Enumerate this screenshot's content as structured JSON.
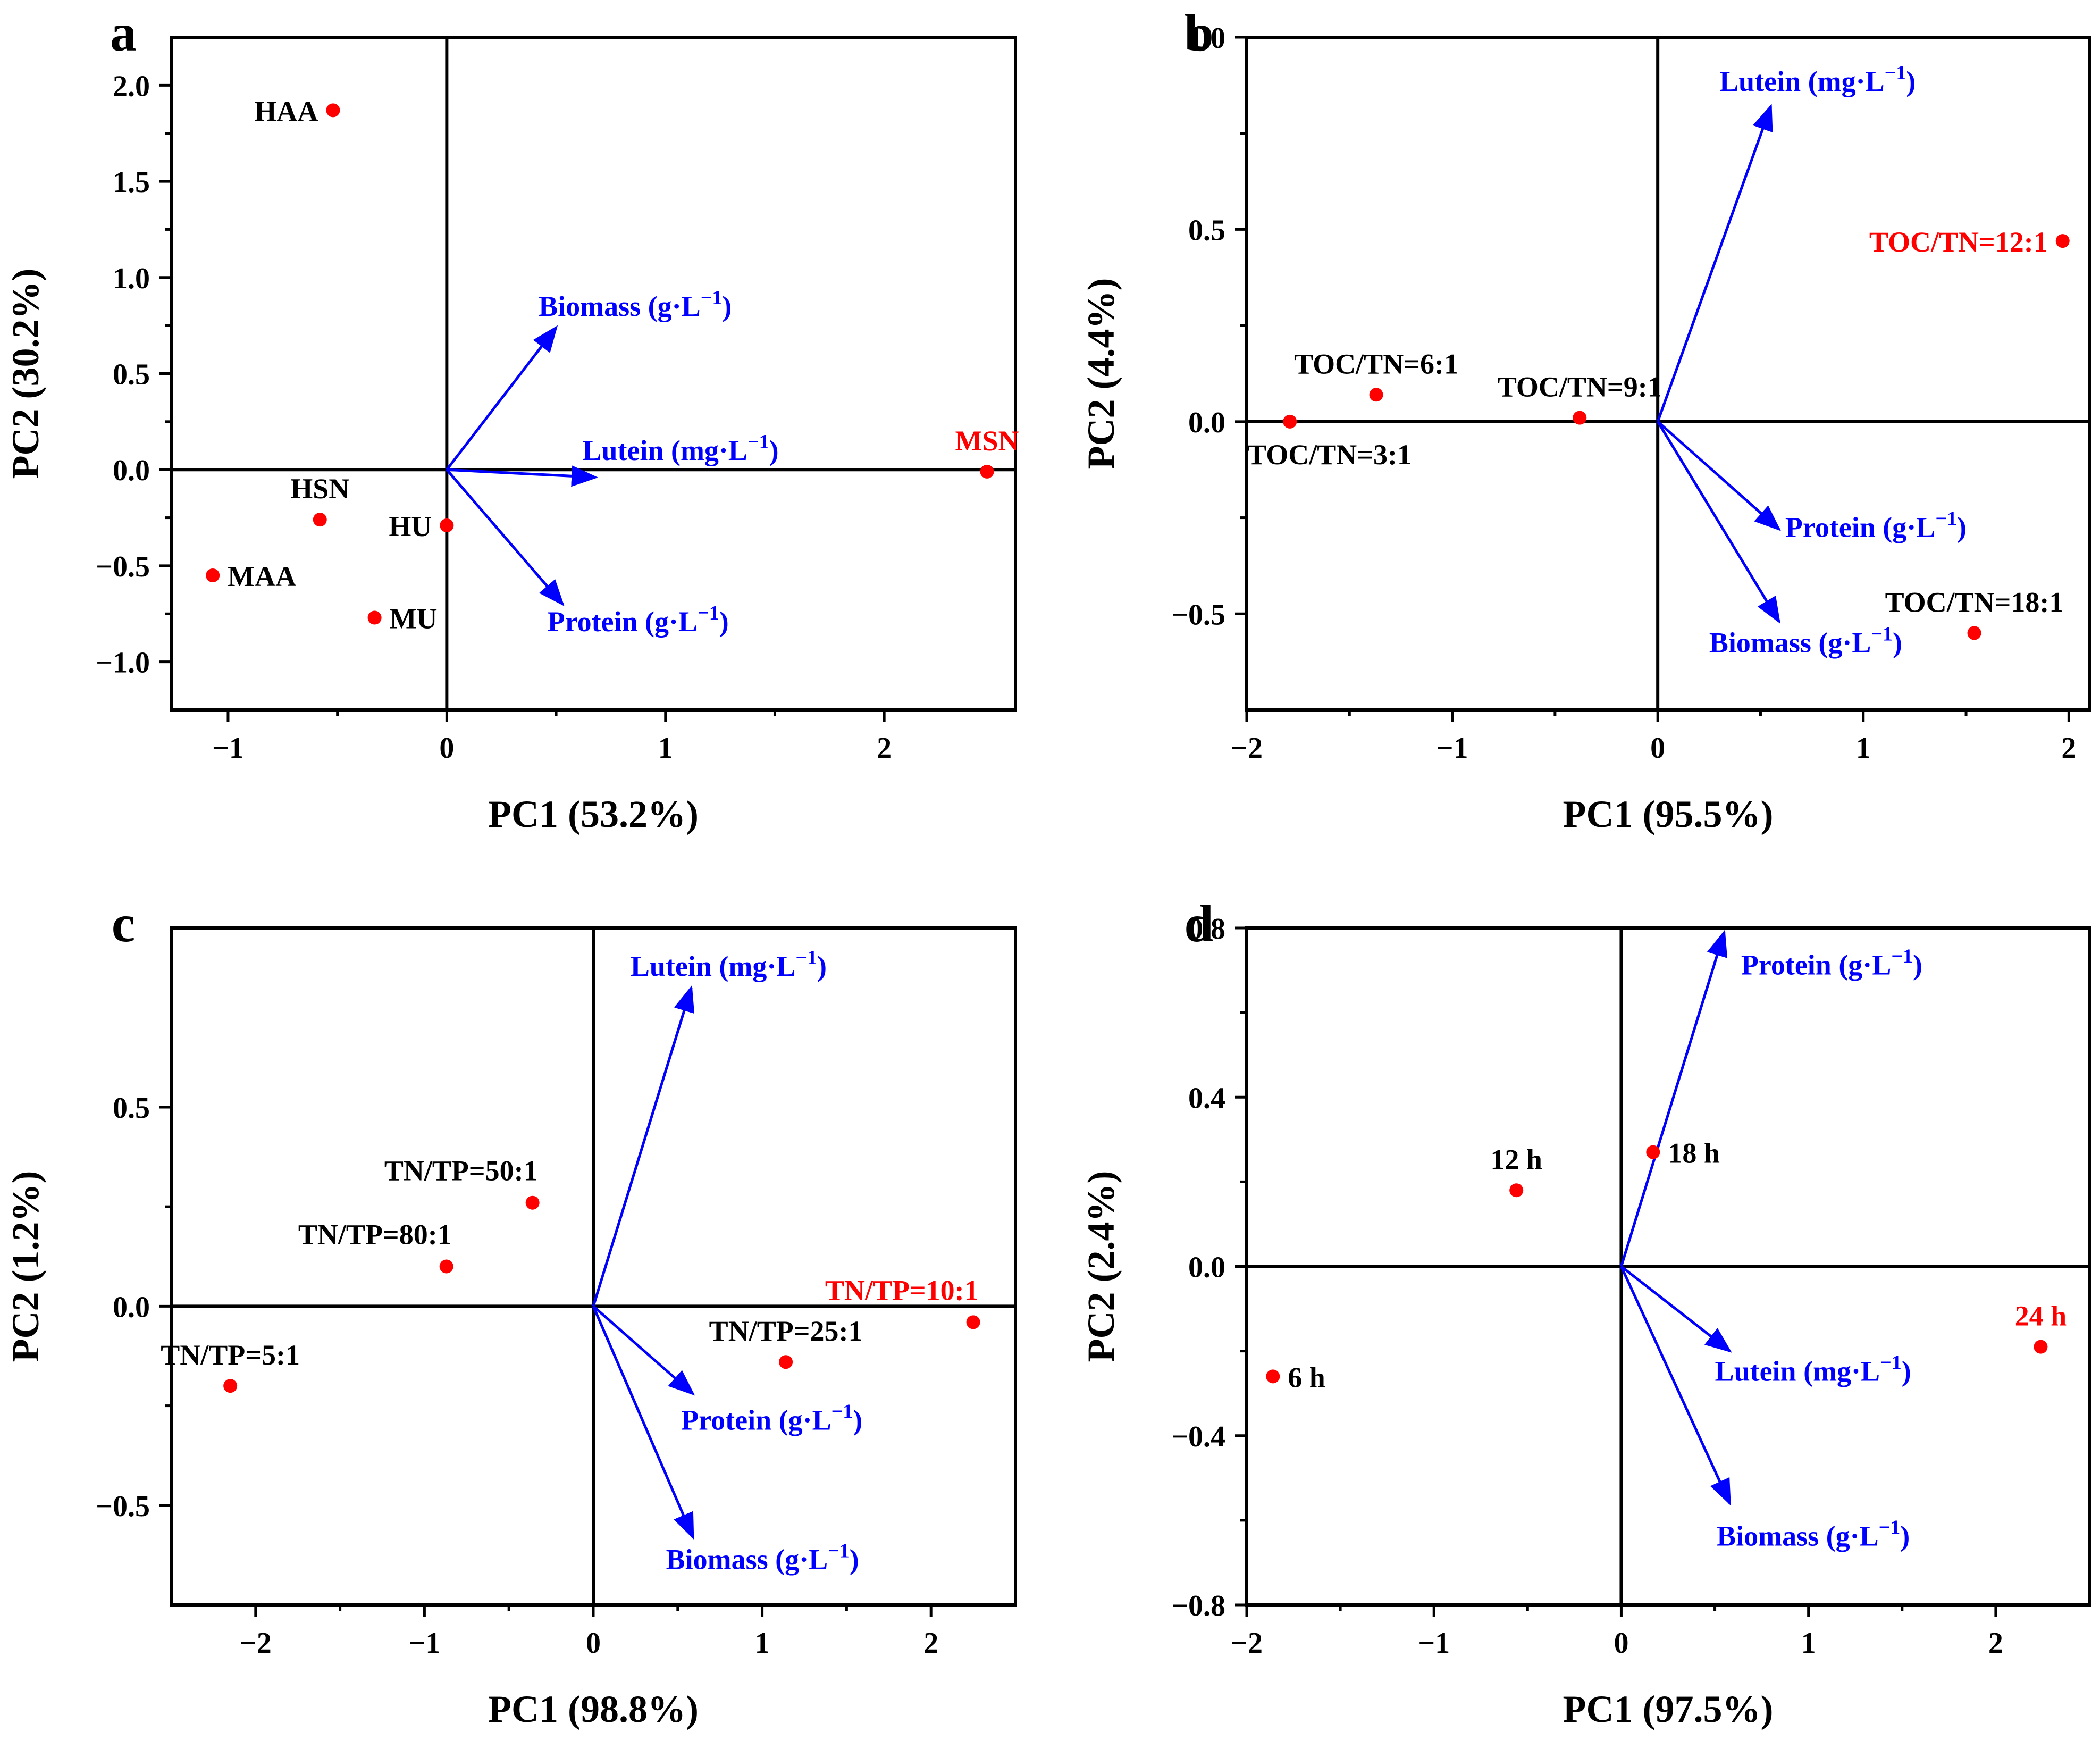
{
  "colors": {
    "point": "#ff0000",
    "vector": "#0000ff",
    "axis": "#000000",
    "highlight": "#ff0000",
    "label": "#000000"
  },
  "chart_data": [
    {
      "type": "scatter",
      "panel": "a",
      "xlabel": "PC1 (53.2%)",
      "ylabel": "PC2 (30.2%)",
      "xlim": [
        -1.26,
        2.6
      ],
      "ylim": [
        -1.25,
        2.25
      ],
      "xticks": [
        {
          "v": -1,
          "label": "−1"
        },
        {
          "v": 0,
          "label": "0"
        },
        {
          "v": 1,
          "label": "1"
        },
        {
          "v": 2,
          "label": "2"
        }
      ],
      "yticks": [
        {
          "v": 2.0,
          "label": "2.0"
        },
        {
          "v": 1.5,
          "label": "1.5"
        },
        {
          "v": 1.0,
          "label": "1.0"
        },
        {
          "v": 0.5,
          "label": "0.5"
        },
        {
          "v": 0.0,
          "label": "0.0"
        },
        {
          "v": -0.5,
          "label": "−0.5"
        },
        {
          "v": -1.0,
          "label": "−1.0"
        }
      ],
      "points": [
        {
          "label": "HAA",
          "x": -0.52,
          "y": 1.87,
          "pos": "left",
          "highlight": false
        },
        {
          "label": "MSN",
          "x": 2.47,
          "y": -0.01,
          "pos": "above",
          "highlight": true
        },
        {
          "label": "HSN",
          "x": -0.58,
          "y": -0.26,
          "pos": "above",
          "highlight": false
        },
        {
          "label": "HU",
          "x": 0.0,
          "y": -0.29,
          "pos": "left",
          "highlight": false
        },
        {
          "label": "MAA",
          "x": -1.07,
          "y": -0.55,
          "pos": "right",
          "highlight": false
        },
        {
          "label": "MU",
          "x": -0.33,
          "y": -0.77,
          "pos": "right",
          "highlight": false
        }
      ],
      "loadings": [
        {
          "label": "Biomass (g·L",
          "sup": "−1",
          "close": ")",
          "x": 0.5,
          "y": 0.74,
          "lx": 0.42,
          "ly": 0.8
        },
        {
          "label": "Lutein (mg·L",
          "sup": "−1",
          "close": ")",
          "x": 0.68,
          "y": -0.04,
          "lx": 0.62,
          "ly": 0.05
        },
        {
          "label": "Protein (g·L",
          "sup": "−1",
          "close": ")",
          "x": 0.53,
          "y": -0.7,
          "lx": 0.46,
          "ly": -0.84
        }
      ]
    },
    {
      "type": "scatter",
      "panel": "b",
      "xlabel": "PC1 (95.5%)",
      "ylabel": "PC2 (4.4%)",
      "xlim": [
        -2.0,
        2.1
      ],
      "ylim": [
        -0.75,
        1.0
      ],
      "xticks": [
        {
          "v": -2,
          "label": "−2"
        },
        {
          "v": -1,
          "label": "−1"
        },
        {
          "v": 0,
          "label": "0"
        },
        {
          "v": 1,
          "label": "1"
        },
        {
          "v": 2,
          "label": "2"
        }
      ],
      "yticks": [
        {
          "v": 1.0,
          "label": "1.0"
        },
        {
          "v": 0.5,
          "label": "0.5"
        },
        {
          "v": 0.0,
          "label": "0.0"
        },
        {
          "v": -0.5,
          "label": "−0.5"
        }
      ],
      "points": [
        {
          "label": "TOC/TN=12:1",
          "x": 1.97,
          "y": 0.47,
          "pos": "left",
          "highlight": true
        },
        {
          "label": "TOC/TN=6:1",
          "x": -1.37,
          "y": 0.07,
          "pos": "above",
          "highlight": false
        },
        {
          "label": "TOC/TN=9:1",
          "x": -0.38,
          "y": 0.01,
          "pos": "above",
          "highlight": false
        },
        {
          "label": "TOC/TN=3:1",
          "x": -1.79,
          "y": 0.0,
          "pos": "below",
          "highlight": false
        },
        {
          "label": "TOC/TN=18:1",
          "x": 1.54,
          "y": -0.55,
          "pos": "above",
          "highlight": false
        }
      ],
      "loadings": [
        {
          "label": "Lutein (mg·L",
          "sup": "−1",
          "close": ")",
          "x": 0.55,
          "y": 0.82,
          "lx": 0.3,
          "ly": 0.86
        },
        {
          "label": "Protein (g·L",
          "sup": "−1",
          "close": ")",
          "x": 0.59,
          "y": -0.28,
          "lx": 0.62,
          "ly": -0.3
        },
        {
          "label": "Biomass (g·L",
          "sup": "−1",
          "close": ")",
          "x": 0.59,
          "y": -0.52,
          "lx": 0.25,
          "ly": -0.6
        }
      ]
    },
    {
      "type": "scatter",
      "panel": "c",
      "xlabel": "PC1 (98.8%)",
      "ylabel": "PC2 (1.2%)",
      "xlim": [
        -2.5,
        2.5
      ],
      "ylim": [
        -0.75,
        0.95
      ],
      "xticks": [
        {
          "v": -2,
          "label": "−2"
        },
        {
          "v": -1,
          "label": "−1"
        },
        {
          "v": 0,
          "label": "0"
        },
        {
          "v": 1,
          "label": "1"
        },
        {
          "v": 2,
          "label": "2"
        }
      ],
      "yticks": [
        {
          "v": 0.5,
          "label": "0.5"
        },
        {
          "v": 0.0,
          "label": "0.0"
        },
        {
          "v": -0.5,
          "label": "−0.5"
        }
      ],
      "points": [
        {
          "label": "TN/TP=50:1",
          "x": -0.36,
          "y": 0.26,
          "pos": "aboveleft",
          "highlight": false
        },
        {
          "label": "TN/TP=80:1",
          "x": -0.87,
          "y": 0.1,
          "pos": "aboveleft",
          "highlight": false
        },
        {
          "label": "TN/TP=10:1",
          "x": 2.25,
          "y": -0.04,
          "pos": "aboveleft",
          "highlight": true
        },
        {
          "label": "TN/TP=25:1",
          "x": 1.14,
          "y": -0.14,
          "pos": "above",
          "highlight": false
        },
        {
          "label": "TN/TP=5:1",
          "x": -2.15,
          "y": -0.2,
          "pos": "above",
          "highlight": false
        }
      ],
      "loadings": [
        {
          "label": "Lutein (mg·L",
          "sup": "−1",
          "close": ")",
          "x": 0.58,
          "y": 0.8,
          "lx": 0.22,
          "ly": 0.83
        },
        {
          "label": "Protein (g·L",
          "sup": "−1",
          "close": ")",
          "x": 0.59,
          "y": -0.22,
          "lx": 0.52,
          "ly": -0.31
        },
        {
          "label": "Biomass (g·L",
          "sup": "−1",
          "close": ")",
          "x": 0.59,
          "y": -0.58,
          "lx": 0.43,
          "ly": -0.66
        }
      ]
    },
    {
      "type": "scatter",
      "panel": "d",
      "xlabel": "PC1 (97.5%)",
      "ylabel": "PC2 (2.4%)",
      "xlim": [
        -2.0,
        2.5
      ],
      "ylim": [
        -0.8,
        0.8
      ],
      "xticks": [
        {
          "v": -2,
          "label": "−2"
        },
        {
          "v": -1,
          "label": "−1"
        },
        {
          "v": 0,
          "label": "0"
        },
        {
          "v": 1,
          "label": "1"
        },
        {
          "v": 2,
          "label": "2"
        }
      ],
      "yticks": [
        {
          "v": 0.8,
          "label": "0.8"
        },
        {
          "v": 0.4,
          "label": "0.4"
        },
        {
          "v": 0.0,
          "label": "0.0"
        },
        {
          "v": -0.4,
          "label": "−0.4"
        },
        {
          "v": -0.8,
          "label": "−0.8"
        }
      ],
      "points": [
        {
          "label": "12 h",
          "x": -0.56,
          "y": 0.18,
          "pos": "above",
          "highlight": false
        },
        {
          "label": "18 h",
          "x": 0.17,
          "y": 0.27,
          "pos": "right",
          "highlight": false
        },
        {
          "label": "6 h",
          "x": -1.86,
          "y": -0.26,
          "pos": "right",
          "highlight": false
        },
        {
          "label": "24 h",
          "x": 2.24,
          "y": -0.19,
          "pos": "above",
          "highlight": true
        }
      ],
      "loadings": [
        {
          "label": "Protein (g·L",
          "sup": "−1",
          "close": ")",
          "x": 0.55,
          "y": 0.79,
          "lx": 0.64,
          "ly": 0.69
        },
        {
          "label": "Lutein (mg·L",
          "sup": "−1",
          "close": ")",
          "x": 0.58,
          "y": -0.2,
          "lx": 0.5,
          "ly": -0.27
        },
        {
          "label": "Biomass (g·L",
          "sup": "−1",
          "close": ")",
          "x": 0.58,
          "y": -0.56,
          "lx": 0.51,
          "ly": -0.66
        }
      ]
    }
  ]
}
